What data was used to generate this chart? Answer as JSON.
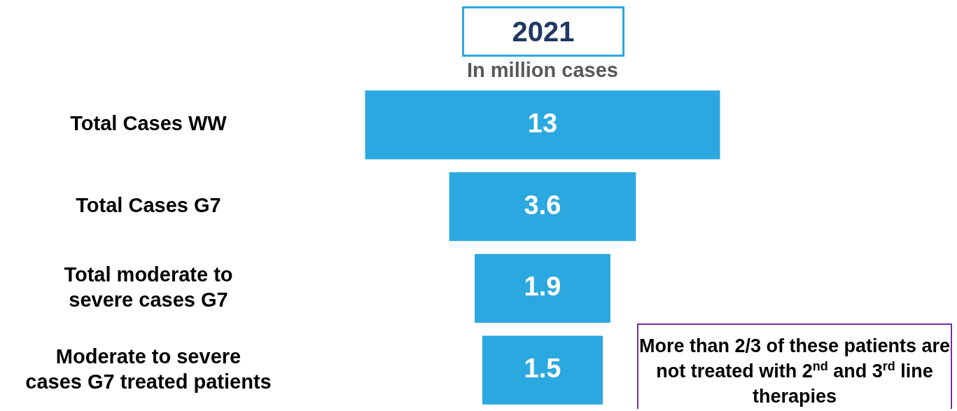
{
  "chart_data": {
    "type": "other",
    "title": "2021",
    "subtitle": "In million cases",
    "categories": [
      "Total Cases WW",
      "Total Cases G7",
      "Total moderate to severe cases G7",
      "Moderate to severe cases G7 treated patients"
    ],
    "values": [
      13,
      3.6,
      1.9,
      1.5
    ],
    "color": "#2ca8e0",
    "data_labels": true,
    "annotations": [
      "More than 2/3 of these patients are not treated with 2$^{nd}$ and 3$^{rd}$ line therapies"
    ]
  }
}
